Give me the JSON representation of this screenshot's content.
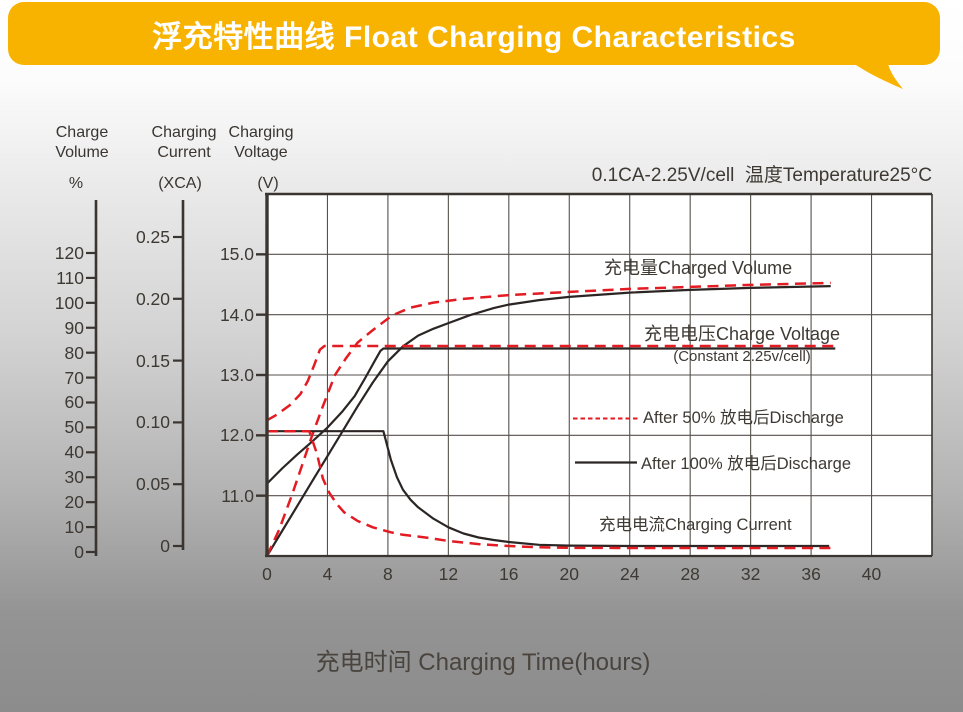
{
  "header": {
    "title": "浮充特性曲线 Float Charging Characteristics",
    "bg_color": "#f8b301",
    "text_color": "#ffffff"
  },
  "chart_data": {
    "type": "line",
    "title": "浮充特性曲线 Float Charging Characteristics",
    "grid": true,
    "x_axis": {
      "title": "充电时间 Charging Time(hours)",
      "range": [
        0,
        44
      ],
      "ticks": [
        0,
        4,
        8,
        12,
        16,
        20,
        24,
        28,
        32,
        36,
        40
      ]
    },
    "y_axes": {
      "volume": {
        "title": "Charge\nVolume",
        "unit": "%",
        "range": [
          0,
          145
        ],
        "ticks": [
          0,
          10,
          20,
          30,
          40,
          50,
          60,
          70,
          80,
          90,
          100,
          110,
          120
        ]
      },
      "current": {
        "title": "Charging\nCurrent",
        "unit": "(XCA)",
        "range": [
          0,
          0.29
        ],
        "ticks": [
          {
            "v": 0,
            "label": "0"
          },
          {
            "v": 0.05,
            "label": "0.05"
          },
          {
            "v": 0.1,
            "label": "0.10"
          },
          {
            "v": 0.15,
            "label": "0.15"
          },
          {
            "v": 0.2,
            "label": "0.20"
          },
          {
            "v": 0.25,
            "label": "0.25"
          }
        ]
      },
      "voltage": {
        "title": "Charging\nVoltage",
        "unit": "(V)",
        "range": [
          10,
          16
        ],
        "ticks": [
          {
            "v": 11,
            "label": "11.0"
          },
          {
            "v": 12,
            "label": "12.0"
          },
          {
            "v": 13,
            "label": "13.0"
          },
          {
            "v": 14,
            "label": "14.0"
          },
          {
            "v": 15,
            "label": "15.0"
          }
        ]
      }
    },
    "annotations": {
      "condition": "0.1CA-2.25V/cell  温度Temperature25°C",
      "charged_volume": "充电量Charged Volume",
      "charge_voltage": "充电电压Charge Voltage",
      "charge_voltage_sub": "(Constant 2.25v/cell)",
      "charging_current": "充电电流Charging Current",
      "legend_50": "After 50% 放电后Discharge",
      "legend_100": "After 100% 放电后Discharge"
    },
    "colors": {
      "red": "#e31b22",
      "black": "#2b2624"
    },
    "series": [
      {
        "name": "charged-volume-after-100-discharge",
        "axis": "volume",
        "style": "solid",
        "color": "black",
        "points": [
          [
            0,
            0
          ],
          [
            1,
            10
          ],
          [
            2,
            20
          ],
          [
            3,
            30
          ],
          [
            4,
            40
          ],
          [
            5,
            50
          ],
          [
            6,
            60
          ],
          [
            7,
            69.5
          ],
          [
            8,
            78
          ],
          [
            9,
            84
          ],
          [
            10,
            88.3
          ],
          [
            11,
            91
          ],
          [
            12,
            93.3
          ],
          [
            13.4,
            96.4
          ],
          [
            15,
            99.3
          ],
          [
            16,
            100.7
          ],
          [
            18,
            102.5
          ],
          [
            20,
            103.8
          ],
          [
            24,
            105.5
          ],
          [
            28,
            106.6
          ],
          [
            32,
            107.4
          ],
          [
            37.3,
            108.1
          ]
        ]
      },
      {
        "name": "charged-volume-after-50-discharge",
        "axis": "volume",
        "style": "dashed",
        "color": "red",
        "points": [
          [
            0,
            0
          ],
          [
            0.8,
            10.5
          ],
          [
            1.65,
            24.4
          ],
          [
            2.3,
            36
          ],
          [
            3,
            48.5
          ],
          [
            3.7,
            60
          ],
          [
            4.5,
            72.5
          ],
          [
            5.2,
            79
          ],
          [
            6,
            85.5
          ],
          [
            7,
            90.5
          ],
          [
            8.3,
            96.4
          ],
          [
            9.5,
            99.5
          ],
          [
            11,
            101.5
          ],
          [
            13,
            103
          ],
          [
            16,
            104.5
          ],
          [
            20,
            105.8
          ],
          [
            24,
            107
          ],
          [
            28,
            107.8
          ],
          [
            32,
            108.6
          ],
          [
            37.3,
            109.4
          ]
        ]
      },
      {
        "name": "charge-voltage-after-100-discharge",
        "axis": "voltage",
        "style": "solid",
        "color": "black",
        "points": [
          [
            0,
            11.2
          ],
          [
            1,
            11.45
          ],
          [
            2,
            11.68
          ],
          [
            3,
            11.9
          ],
          [
            4,
            12.13
          ],
          [
            5,
            12.4
          ],
          [
            5.8,
            12.65
          ],
          [
            6.5,
            12.95
          ],
          [
            7.1,
            13.22
          ],
          [
            7.5,
            13.4
          ],
          [
            7.7,
            13.44
          ],
          [
            37.6,
            13.44
          ]
        ]
      },
      {
        "name": "charge-voltage-after-50-discharge",
        "axis": "voltage",
        "style": "dashed",
        "color": "red",
        "points": [
          [
            0,
            12.25
          ],
          [
            0.7,
            12.35
          ],
          [
            1.5,
            12.5
          ],
          [
            2.2,
            12.68
          ],
          [
            2.7,
            12.9
          ],
          [
            3.1,
            13.15
          ],
          [
            3.5,
            13.42
          ],
          [
            3.8,
            13.48
          ],
          [
            37.6,
            13.48
          ]
        ]
      },
      {
        "name": "charging-current-after-100-discharge",
        "axis": "current",
        "style": "solid",
        "color": "black",
        "points": [
          [
            0,
            0.1
          ],
          [
            7.7,
            0.1
          ],
          [
            8.2,
            0.077
          ],
          [
            8.6,
            0.063
          ],
          [
            9,
            0.053
          ],
          [
            9.5,
            0.045
          ],
          [
            10,
            0.039
          ],
          [
            11,
            0.03
          ],
          [
            12,
            0.023
          ],
          [
            13,
            0.018
          ],
          [
            14,
            0.0148
          ],
          [
            15,
            0.0128
          ],
          [
            16,
            0.0112
          ],
          [
            18,
            0.009
          ],
          [
            20,
            0.0083
          ],
          [
            24,
            0.008
          ],
          [
            37.2,
            0.008
          ]
        ]
      },
      {
        "name": "charging-current-after-50-discharge",
        "axis": "current",
        "style": "dashed",
        "color": "red",
        "points": [
          [
            0,
            0.1
          ],
          [
            2.8,
            0.1
          ],
          [
            3.3,
            0.082
          ],
          [
            3.7,
            0.062
          ],
          [
            4.1,
            0.051
          ],
          [
            4.6,
            0.042
          ],
          [
            5.1,
            0.035
          ],
          [
            6,
            0.028
          ],
          [
            7,
            0.023
          ],
          [
            8.2,
            0.019
          ],
          [
            9,
            0.017
          ],
          [
            10.7,
            0.0145
          ],
          [
            12,
            0.012
          ],
          [
            14,
            0.0095
          ],
          [
            16,
            0.008
          ],
          [
            18,
            0.007
          ],
          [
            20,
            0.0066
          ],
          [
            24,
            0.0064
          ],
          [
            37.3,
            0.0064
          ]
        ]
      }
    ]
  }
}
